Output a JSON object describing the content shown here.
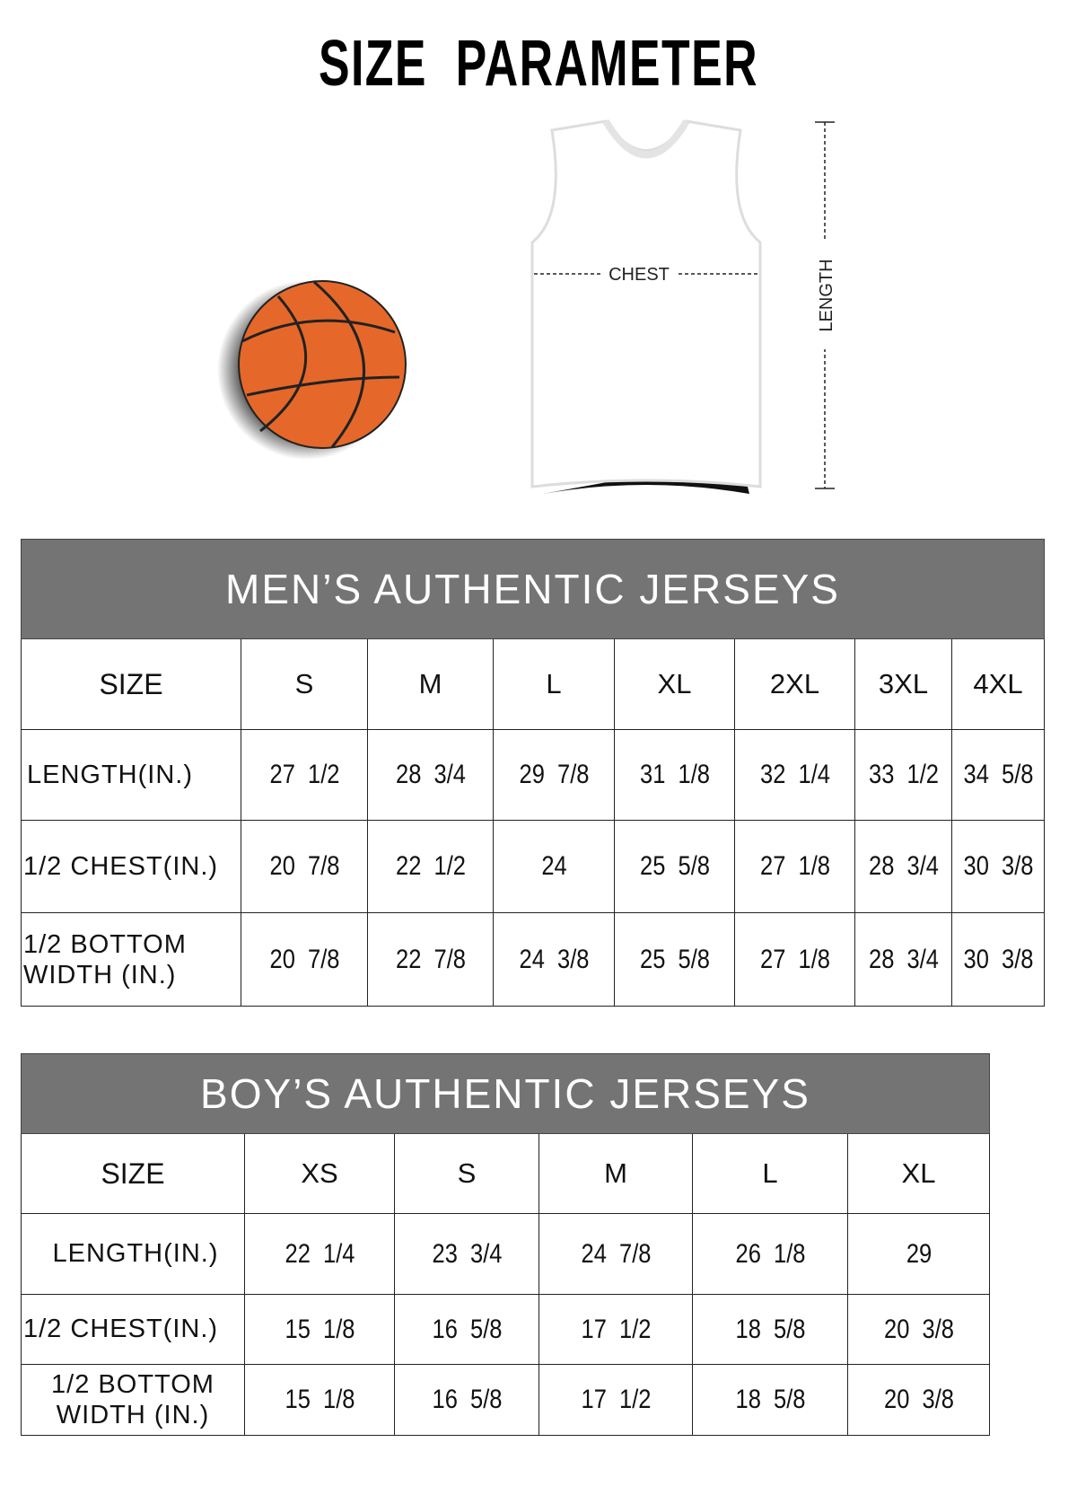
{
  "title": {
    "word1": "SIZE",
    "word2": "PARAMETER"
  },
  "diagram": {
    "chest_label": "CHEST",
    "length_label": "LENGTH",
    "colors": {
      "ball": "#E5682A",
      "header": "#747474"
    }
  },
  "men": {
    "heading": "MEN’S AUTHENTIC JERSEYS",
    "size_label": "SIZE",
    "sizes": [
      "S",
      "M",
      "L",
      "XL",
      "2XL",
      "3XL",
      "4XL"
    ],
    "rows": [
      {
        "label": "LENGTH(IN.)",
        "values": [
          "27  1/2",
          "28  3/4",
          "29  7/8",
          "31  1/8",
          "32  1/4",
          "33  1/2",
          "34  5/8"
        ]
      },
      {
        "label": "1/2 CHEST(IN.)",
        "values": [
          "20  7/8",
          "22  1/2",
          "24",
          "25  5/8",
          "27  1/8",
          "28  3/4",
          "30  3/8"
        ]
      },
      {
        "label": "1/2 BOTTOM WIDTH  (IN.)",
        "values": [
          "20  7/8",
          "22  7/8",
          "24  3/8",
          "25  5/8",
          "27  1/8",
          "28  3/4",
          "30  3/8"
        ]
      }
    ]
  },
  "boys": {
    "heading": "BOY’S AUTHENTIC JERSEYS",
    "size_label": "SIZE",
    "sizes": [
      "XS",
      "S",
      "M",
      "L",
      "XL"
    ],
    "rows": [
      {
        "label": "LENGTH(IN.)",
        "values": [
          "22  1/4",
          "23  3/4",
          "24  7/8",
          "26  1/8",
          "29"
        ]
      },
      {
        "label": "1/2 CHEST(IN.)",
        "values": [
          "15  1/8",
          "16  5/8",
          "17  1/2",
          "18  5/8",
          "20  3/8"
        ]
      },
      {
        "label": "1/2 BOTTOM WIDTH  (IN.)",
        "values": [
          "15  1/8",
          "16  5/8",
          "17  1/2",
          "18  5/8",
          "20  3/8"
        ]
      }
    ]
  }
}
